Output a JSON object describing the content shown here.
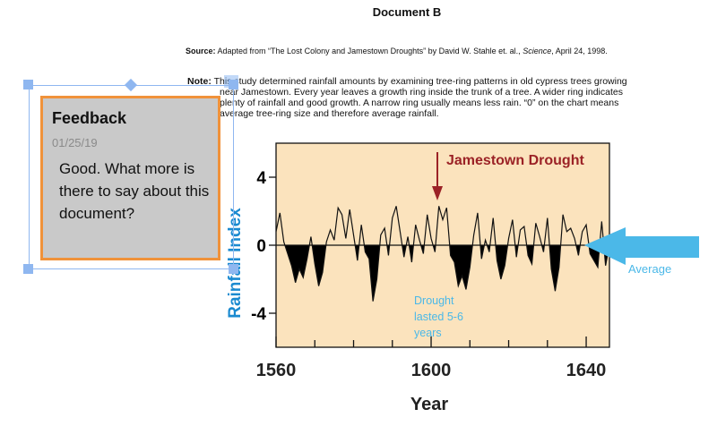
{
  "document": {
    "title": "Document B",
    "source_label": "Source:",
    "source_text": " Adapted from “The Lost Colony and Jamestown Droughts” by David W. Stahle et. al., ",
    "source_journal": "Science",
    "source_date": ", April 24, 1998.",
    "note_label": "Note:",
    "note_lines": [
      "This study determined rainfall amounts by examining tree-ring patterns in old cypress trees growing",
      "near Jamestown. Every year leaves a growth ring inside the trunk of a tree. A wider ring indicates",
      "plenty of rainfall and good growth. A narrow ring usually means less rain. “0” on the chart means",
      "average tree-ring size and therefore average rainfall."
    ]
  },
  "feedback": {
    "title": "Feedback",
    "date": "01/25/19",
    "body": "Good. What more is there to say about this document?",
    "border_color": "#f0923a",
    "background": "#c9c9c9"
  },
  "annotations": {
    "average_label": "Average",
    "drought_label": [
      "Drought",
      "lasted 5-6",
      "years"
    ],
    "annotation_color": "#4bb8e8"
  },
  "chart_data": {
    "type": "area",
    "title": "",
    "annotation": "Jamestown Drought",
    "xlabel": "Year",
    "ylabel": "Rainfall Index",
    "xlim": [
      1560,
      1646
    ],
    "ylim": [
      -6,
      6
    ],
    "xticks": [
      "1560",
      "1600",
      "1640"
    ],
    "yticks": [
      "4",
      "0",
      "-4"
    ],
    "background": "#fbe3bd",
    "fill_color": "#000000",
    "annotation_color": "#9b2226",
    "ylabel_color": "#1a8ad0",
    "x": [
      1560,
      1561,
      1562,
      1563,
      1564,
      1565,
      1566,
      1567,
      1568,
      1569,
      1570,
      1571,
      1572,
      1573,
      1574,
      1575,
      1576,
      1577,
      1578,
      1579,
      1580,
      1581,
      1582,
      1583,
      1584,
      1585,
      1586,
      1587,
      1588,
      1589,
      1590,
      1591,
      1592,
      1593,
      1594,
      1595,
      1596,
      1597,
      1598,
      1599,
      1600,
      1601,
      1602,
      1603,
      1604,
      1605,
      1606,
      1607,
      1608,
      1609,
      1610,
      1611,
      1612,
      1613,
      1614,
      1615,
      1616,
      1617,
      1618,
      1619,
      1620,
      1621,
      1622,
      1623,
      1624,
      1625,
      1626,
      1627,
      1628,
      1629,
      1630,
      1631,
      1632,
      1633,
      1634,
      1635,
      1636,
      1637,
      1638,
      1639,
      1640,
      1641,
      1642,
      1643,
      1644,
      1645,
      1646
    ],
    "y": [
      0.8,
      1.9,
      0.2,
      -0.5,
      -1.2,
      -2.2,
      -1.4,
      -1.9,
      -0.8,
      0.5,
      -1.1,
      -2.4,
      -1.6,
      0.2,
      0.9,
      0.3,
      2.2,
      1.8,
      0.4,
      2.1,
      0.6,
      -0.9,
      1.2,
      -0.4,
      -0.8,
      -3.3,
      -2.0,
      0.6,
      1.0,
      -0.6,
      1.6,
      2.3,
      0.8,
      -0.7,
      0.5,
      -1.0,
      1.2,
      0.3,
      -0.5,
      1.8,
      0.4,
      -0.4,
      2.3,
      1.5,
      2.2,
      -0.6,
      -1.0,
      -2.4,
      -1.8,
      -2.6,
      -1.3,
      0.6,
      1.9,
      -0.8,
      0.3,
      -0.4,
      1.6,
      -0.9,
      -2.0,
      -1.2,
      0.4,
      1.5,
      -0.7,
      0.9,
      1.1,
      -0.6,
      -1.1,
      1.3,
      0.5,
      -0.4,
      1.6,
      -1.4,
      -2.7,
      -1.3,
      1.8,
      0.8,
      1.0,
      0.4,
      -0.6,
      0.8,
      1.2,
      -0.5,
      -0.9,
      -1.3,
      1.4,
      -1.2,
      0.0
    ]
  }
}
